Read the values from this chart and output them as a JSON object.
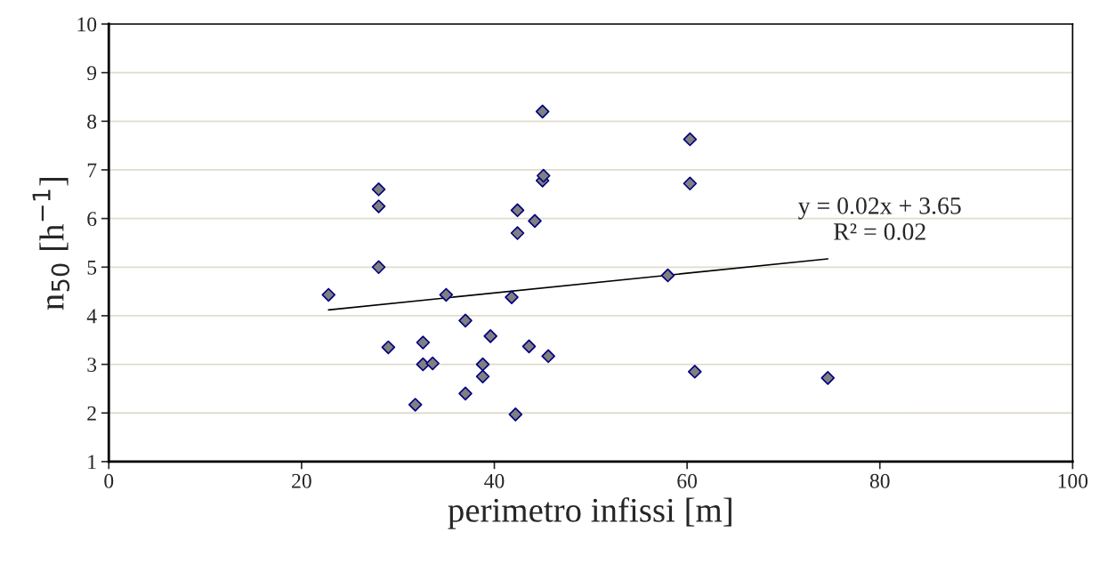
{
  "chart_data": {
    "type": "scatter",
    "xlabel": "perimetro infissi [m]",
    "ylabel": "n$_{50}$ [h$^{−1}$]",
    "xlim": [
      0,
      100
    ],
    "xticks": [
      0,
      20,
      40,
      60,
      80,
      100
    ],
    "ylim": [
      1,
      10
    ],
    "yticks": [
      1,
      2,
      3,
      4,
      5,
      6,
      7,
      8,
      9,
      10
    ],
    "grid": "y",
    "legend": false,
    "series": [
      {
        "marker": "diamond",
        "color": "#808080",
        "x": [
          22.8,
          28,
          28,
          28,
          29,
          31.8,
          32.6,
          32.6,
          33.6,
          35,
          37,
          37,
          38.8,
          38.8,
          39.6,
          41.8,
          42.2,
          42.4,
          42.4,
          43.6,
          44.2,
          45,
          45,
          45.1,
          45.6,
          58,
          60.3,
          60.3,
          60.8,
          74.6
        ],
        "values": [
          4.43,
          6.6,
          6.25,
          5.0,
          3.35,
          2.17,
          3.45,
          3.0,
          3.02,
          4.43,
          3.9,
          2.4,
          3.0,
          2.75,
          3.58,
          4.38,
          1.97,
          6.17,
          5.7,
          3.37,
          5.95,
          8.2,
          6.78,
          6.88,
          3.17,
          4.83,
          7.63,
          6.72,
          2.85,
          2.72
        ]
      },
      {
        "type": "line",
        "color": "#000000",
        "x": [
          22.8,
          74.6
        ],
        "values": [
          4.12,
          5.17
        ]
      }
    ],
    "annotations": [
      "y = 0.02x + 3.65\nR² = 0.02"
    ]
  }
}
